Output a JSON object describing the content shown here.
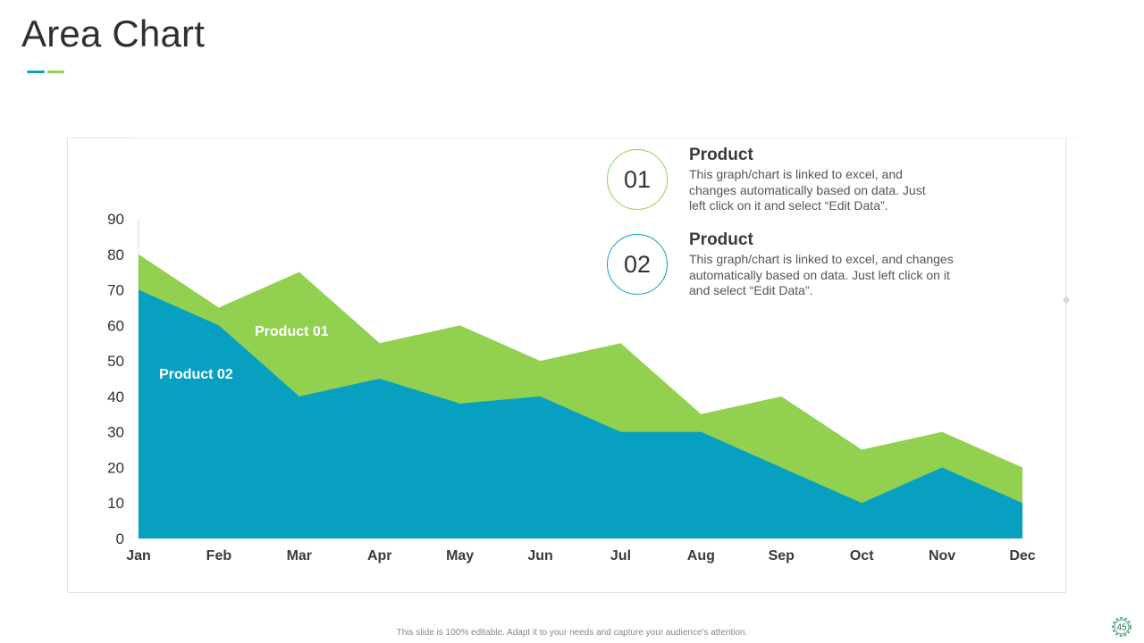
{
  "slide": {
    "title": "Area Chart",
    "footer": "This slide is 100% editable. Adapt it to your needs and capture your audience's attention.",
    "page_number": "45"
  },
  "colors": {
    "accent_blue": "#0ba0bf",
    "accent_green": "#92d050",
    "product01": "#92d050",
    "product02": "#07a0c1"
  },
  "legend": [
    {
      "number": "01",
      "heading": "Product",
      "desc_lines": [
        "This graph/chart is linked to excel, and",
        "changes automatically based on data. Just",
        "left click on it and select “Edit Data”."
      ],
      "color": "#92d050"
    },
    {
      "number": "02",
      "heading": "Product",
      "desc_lines": [
        "This graph/chart is linked to excel, and changes",
        "automatically based on data. Just left click on it",
        "and select “Edit Data”."
      ],
      "color": "#07a0c1"
    }
  ],
  "chart_data": {
    "type": "area",
    "categories": [
      "Jan",
      "Feb",
      "Mar",
      "Apr",
      "May",
      "Jun",
      "Jul",
      "Aug",
      "Sep",
      "Oct",
      "Nov",
      "Dec"
    ],
    "series": [
      {
        "name": "Product 01",
        "values": [
          80,
          65,
          75,
          55,
          60,
          50,
          55,
          35,
          40,
          25,
          30,
          20
        ],
        "color": "#92d050"
      },
      {
        "name": "Product 02",
        "values": [
          70,
          60,
          40,
          45,
          38,
          40,
          30,
          30,
          20,
          10,
          20,
          10
        ],
        "color": "#07a0c1"
      }
    ],
    "yticks": [
      0,
      10,
      20,
      30,
      40,
      50,
      60,
      70,
      80,
      90
    ],
    "ylim": [
      0,
      90
    ],
    "grid": false,
    "legend": "top-right"
  }
}
